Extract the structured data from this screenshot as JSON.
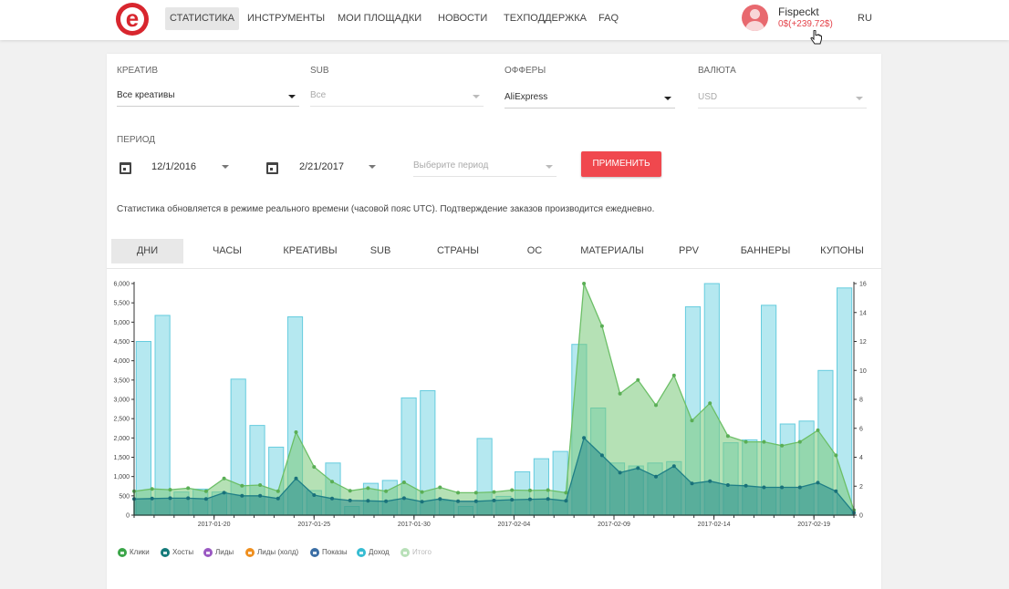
{
  "header": {
    "logo_letter": "e",
    "nav": [
      "СТАТИСТИКА",
      "ИНСТРУМЕНТЫ",
      "МОИ ПЛОЩАДКИ",
      "НОВОСТИ",
      "ТЕХПОДДЕРЖКА",
      "FAQ"
    ],
    "username": "Fispeckt",
    "balance": "0$(+239.72$)",
    "lang": "RU"
  },
  "filters": {
    "creative_label": "КРЕАТИВ",
    "creative_value": "Все креативы",
    "sub_label": "SUB",
    "sub_value": "Все",
    "offers_label": "ОФФЕРЫ",
    "offers_value": "AliExpress",
    "currency_label": "ВАЛЮТА",
    "currency_value": "USD",
    "period_label": "ПЕРИОД",
    "date_from": "12/1/2016",
    "date_to": "2/21/2017",
    "period_placeholder": "Выберите период",
    "apply_label": "ПРИМЕНИТЬ"
  },
  "note": "Статистика обновляется в режиме реального времени (часовой пояс UTC). Подтверждение заказов производится ежедневно.",
  "tabs": [
    "ДНИ",
    "ЧАСЫ",
    "КРЕАТИВЫ",
    "SUB",
    "СТРАНЫ",
    "ОС",
    "МАТЕРИАЛЫ",
    "PPV",
    "БАННЕРЫ",
    "КУПОНЫ"
  ],
  "legend": [
    {
      "label": "Клики",
      "color": "#3aa548"
    },
    {
      "label": "Хосты",
      "color": "#147a7a"
    },
    {
      "label": "Лиды",
      "color": "#9a58c2"
    },
    {
      "label": "Лиды (холд)",
      "color": "#ef8f1e"
    },
    {
      "label": "Показы",
      "color": "#3b6ea5"
    },
    {
      "label": "Доход",
      "color": "#36bcd2"
    },
    {
      "label": "Итого",
      "color": "#b8e0b8"
    }
  ],
  "chart_data": {
    "type": "bar",
    "x_tick_labels": [
      "2017-01-20",
      "2017-01-25",
      "2017-01-30",
      "2017-02-04",
      "2017-02-09",
      "2017-02-14",
      "2017-02-19"
    ],
    "x_start": "2017-01-16",
    "x_end": "2017-02-21",
    "y_left_ticks": [
      "6,000",
      "5,500",
      "5,000",
      "4,500",
      "4,000",
      "3,500",
      "3,000",
      "2,500",
      "2,000",
      "1,500",
      "1,000",
      "500",
      "0"
    ],
    "y_left_range": [
      0,
      6000
    ],
    "y_right_ticks": [
      "16",
      "14",
      "12",
      "10",
      "8",
      "6",
      "4",
      "2",
      "0"
    ],
    "y_right_range": [
      0,
      16
    ],
    "series": [
      {
        "name": "Доход",
        "kind": "bar",
        "axis": "right",
        "values": [
          12.0,
          13.8,
          1.6,
          1.8,
          1.6,
          9.4,
          6.2,
          4.7,
          13.7,
          1.7,
          3.6,
          0.6,
          2.2,
          2.4,
          8.1,
          8.6,
          1.0,
          0.6,
          5.3,
          1.3,
          3.0,
          3.9,
          4.4,
          11.8,
          7.4,
          3.6,
          3.4,
          3.6,
          3.7,
          14.4,
          16.0,
          5.0,
          5.2,
          14.5,
          6.3,
          6.5,
          10.0,
          15.7
        ]
      },
      {
        "name": "Клики",
        "kind": "area",
        "axis": "left",
        "values": [
          620,
          680,
          660,
          700,
          620,
          950,
          760,
          780,
          620,
          2150,
          1250,
          870,
          630,
          700,
          620,
          850,
          600,
          720,
          580,
          580,
          600,
          650,
          640,
          650,
          580,
          6000,
          4900,
          3150,
          3500,
          2850,
          3620,
          2450,
          2900,
          2050,
          1900,
          1900,
          1800,
          1900,
          2200,
          1550,
          130
        ]
      },
      {
        "name": "Хосты",
        "kind": "area",
        "axis": "left",
        "values": [
          420,
          430,
          440,
          440,
          420,
          580,
          500,
          500,
          430,
          950,
          520,
          430,
          380,
          370,
          360,
          440,
          350,
          420,
          360,
          360,
          380,
          400,
          410,
          420,
          370,
          2000,
          1550,
          1100,
          1220,
          1000,
          1270,
          820,
          880,
          780,
          760,
          720,
          720,
          720,
          840,
          620,
          60
        ]
      }
    ]
  }
}
